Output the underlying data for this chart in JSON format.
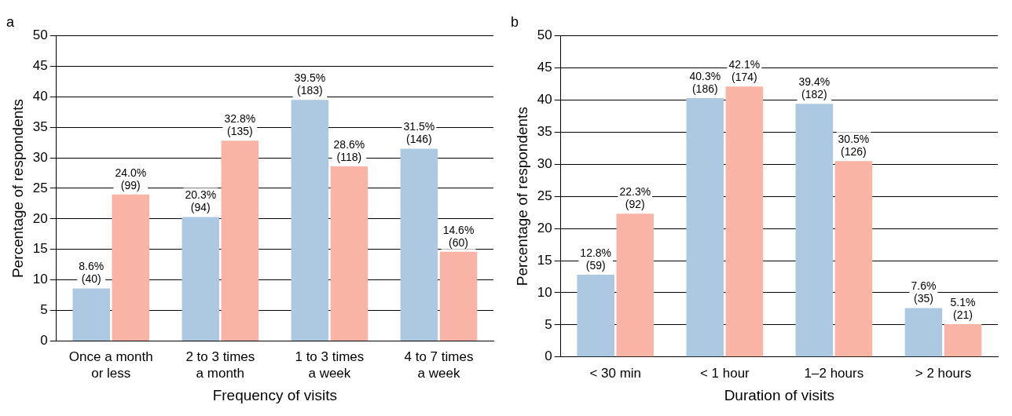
{
  "chart_data": [
    {
      "type": "bar",
      "title": "a",
      "xlabel": "Frequency of visits",
      "ylabel": "Percentage of respondents",
      "categories": [
        "Once a month or less",
        "2 to 3 times a month",
        "1 to 3 times a week",
        "4 to 7 times a week"
      ],
      "series": [
        {
          "color": "#adc9e1",
          "values": [
            8.6,
            20.3,
            39.5,
            31.5
          ],
          "value_labels": [
            "8.6%\n(40)",
            "20.3%\n(94)",
            "39.5%\n(183)",
            "31.5%\n(146)"
          ]
        },
        {
          "color": "#fab4a6",
          "values": [
            24.0,
            32.8,
            28.6,
            14.6
          ],
          "value_labels": [
            "24.0%\n(99)",
            "32.8%\n(135)",
            "28.6%\n(118)",
            "14.6%\n(60)"
          ]
        }
      ],
      "ylim": [
        0,
        50
      ],
      "yticks": [
        0,
        5,
        10,
        15,
        20,
        25,
        30,
        35,
        40,
        45,
        50
      ],
      "grid": "y",
      "legend": false
    },
    {
      "type": "bar",
      "title": "b",
      "xlabel": "Duration of visits",
      "ylabel": "Percentage of respondents",
      "categories": [
        "< 30 min",
        "< 1 hour",
        "1–2 hours",
        "> 2 hours"
      ],
      "series": [
        {
          "color": "#adc9e1",
          "values": [
            12.8,
            40.3,
            39.4,
            7.6
          ],
          "value_labels": [
            "12.8%\n(59)",
            "40.3%\n(186)",
            "39.4%\n(182)",
            "7.6%\n(35)"
          ]
        },
        {
          "color": "#fab4a6",
          "values": [
            22.3,
            42.1,
            30.5,
            5.1
          ],
          "value_labels": [
            "22.3%\n(92)",
            "42.1%\n(174)",
            "30.5%\n(126)",
            "5.1%\n(21)"
          ]
        }
      ],
      "ylim": [
        0,
        50
      ],
      "yticks": [
        0,
        5,
        10,
        15,
        20,
        25,
        30,
        35,
        40,
        45,
        50
      ],
      "grid": "y",
      "legend": false
    }
  ]
}
